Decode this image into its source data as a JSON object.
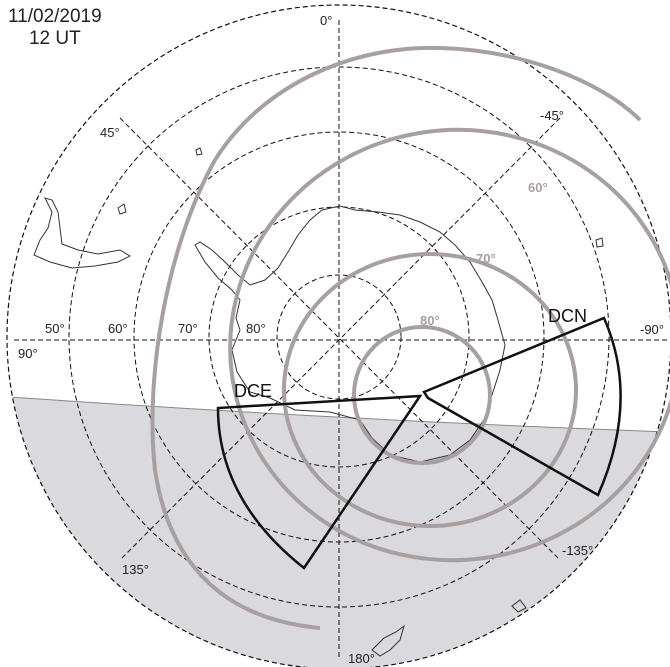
{
  "header": {
    "date": "11/02/2019",
    "time": "12 UT"
  },
  "longitude_labels": [
    "0°",
    "-45°",
    "45°",
    "-90°",
    "90°",
    "-135°",
    "135°",
    "180°"
  ],
  "latitude_labels": [
    "50°",
    "60°",
    "70°",
    "80°"
  ],
  "magnetic_latitude_labels": [
    "60°",
    "70°",
    "80°"
  ],
  "radars": [
    {
      "name": "DCN"
    },
    {
      "name": "DCE"
    }
  ],
  "colors": {
    "graticule": "#111111",
    "magnetic_contours": "#a8a0a0",
    "night_shading": "#d9d9de",
    "radar_fov": "#111111",
    "coastline": "#333333"
  }
}
